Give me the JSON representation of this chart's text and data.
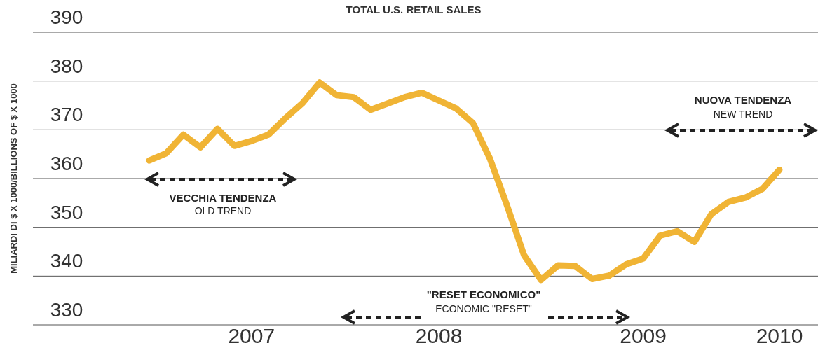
{
  "chart_data": {
    "type": "line",
    "title": "TOTAL U.S. RETAIL SALES",
    "ylabel": "MILIARDI DI $ X 1000/BILLIONS OF $ X 1000",
    "categories": [
      null,
      null,
      null,
      null,
      null,
      null,
      "2007",
      null,
      null,
      null,
      null,
      null,
      null,
      null,
      null,
      null,
      null,
      "2008",
      null,
      null,
      null,
      null,
      null,
      null,
      null,
      null,
      null,
      null,
      null,
      "2009",
      null,
      null,
      null,
      null,
      null,
      null,
      null,
      "2010"
    ],
    "series": [
      {
        "color": "#f0b435",
        "values": [
          363.7,
          365.2,
          369.0,
          366.4,
          370.2,
          366.7,
          367.7,
          369.0,
          372.4,
          375.5,
          379.7,
          377.1,
          376.7,
          374.1,
          375.4,
          376.7,
          377.6,
          376.0,
          374.4,
          371.4,
          364.1,
          354.5,
          344.3,
          339.2,
          342.2,
          342.1,
          339.4,
          340.1,
          342.4,
          343.6,
          348.3,
          349.2,
          347.0,
          352.7,
          355.2,
          356.1,
          357.9,
          361.8
        ]
      }
    ],
    "ylim": [
      330,
      390
    ],
    "yticks": [
      330,
      340,
      350,
      360,
      370,
      380,
      390
    ],
    "grid": "y",
    "marker": "none",
    "line_style": "solid",
    "annotations": [
      "VECCHIA TENDENZA",
      "OLD TREND",
      "\"RESET ECONOMICO\"",
      "ECONOMIC \"RESET\"",
      "NUOVA TENDENZA",
      "NEW TREND"
    ]
  }
}
